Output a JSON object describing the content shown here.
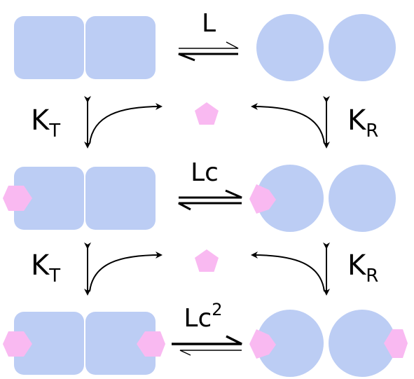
{
  "colors": {
    "subunit": "#bccdf4",
    "ligand": "#f9b9f1",
    "arrow": "#000000",
    "background": "#ffffff"
  },
  "equilibria": {
    "row0": {
      "label_base": "L",
      "label_sup": ""
    },
    "row1": {
      "label_base": "Lc",
      "label_sup": ""
    },
    "row2": {
      "label_base": "Lc",
      "label_sup": "2"
    }
  },
  "binding_constants": {
    "left_upper": {
      "base": "K",
      "sub": "T"
    },
    "right_upper": {
      "base": "K",
      "sub": "R"
    },
    "left_lower": {
      "base": "K",
      "sub": "T"
    },
    "right_lower": {
      "base": "K",
      "sub": "R"
    }
  },
  "states": {
    "T0": {
      "shape": "square-dimer",
      "ligands_bound": 0
    },
    "R0": {
      "shape": "circle-dimer",
      "ligands_bound": 0
    },
    "T1": {
      "shape": "square-dimer",
      "ligands_bound": 1
    },
    "R1": {
      "shape": "circle-dimer",
      "ligands_bound": 1
    },
    "T2": {
      "shape": "square-dimer",
      "ligands_bound": 2
    },
    "R2": {
      "shape": "circle-dimer",
      "ligands_bound": 2
    }
  },
  "free_ligands": [
    {
      "shape": "pentagon"
    },
    {
      "shape": "pentagon"
    }
  ]
}
